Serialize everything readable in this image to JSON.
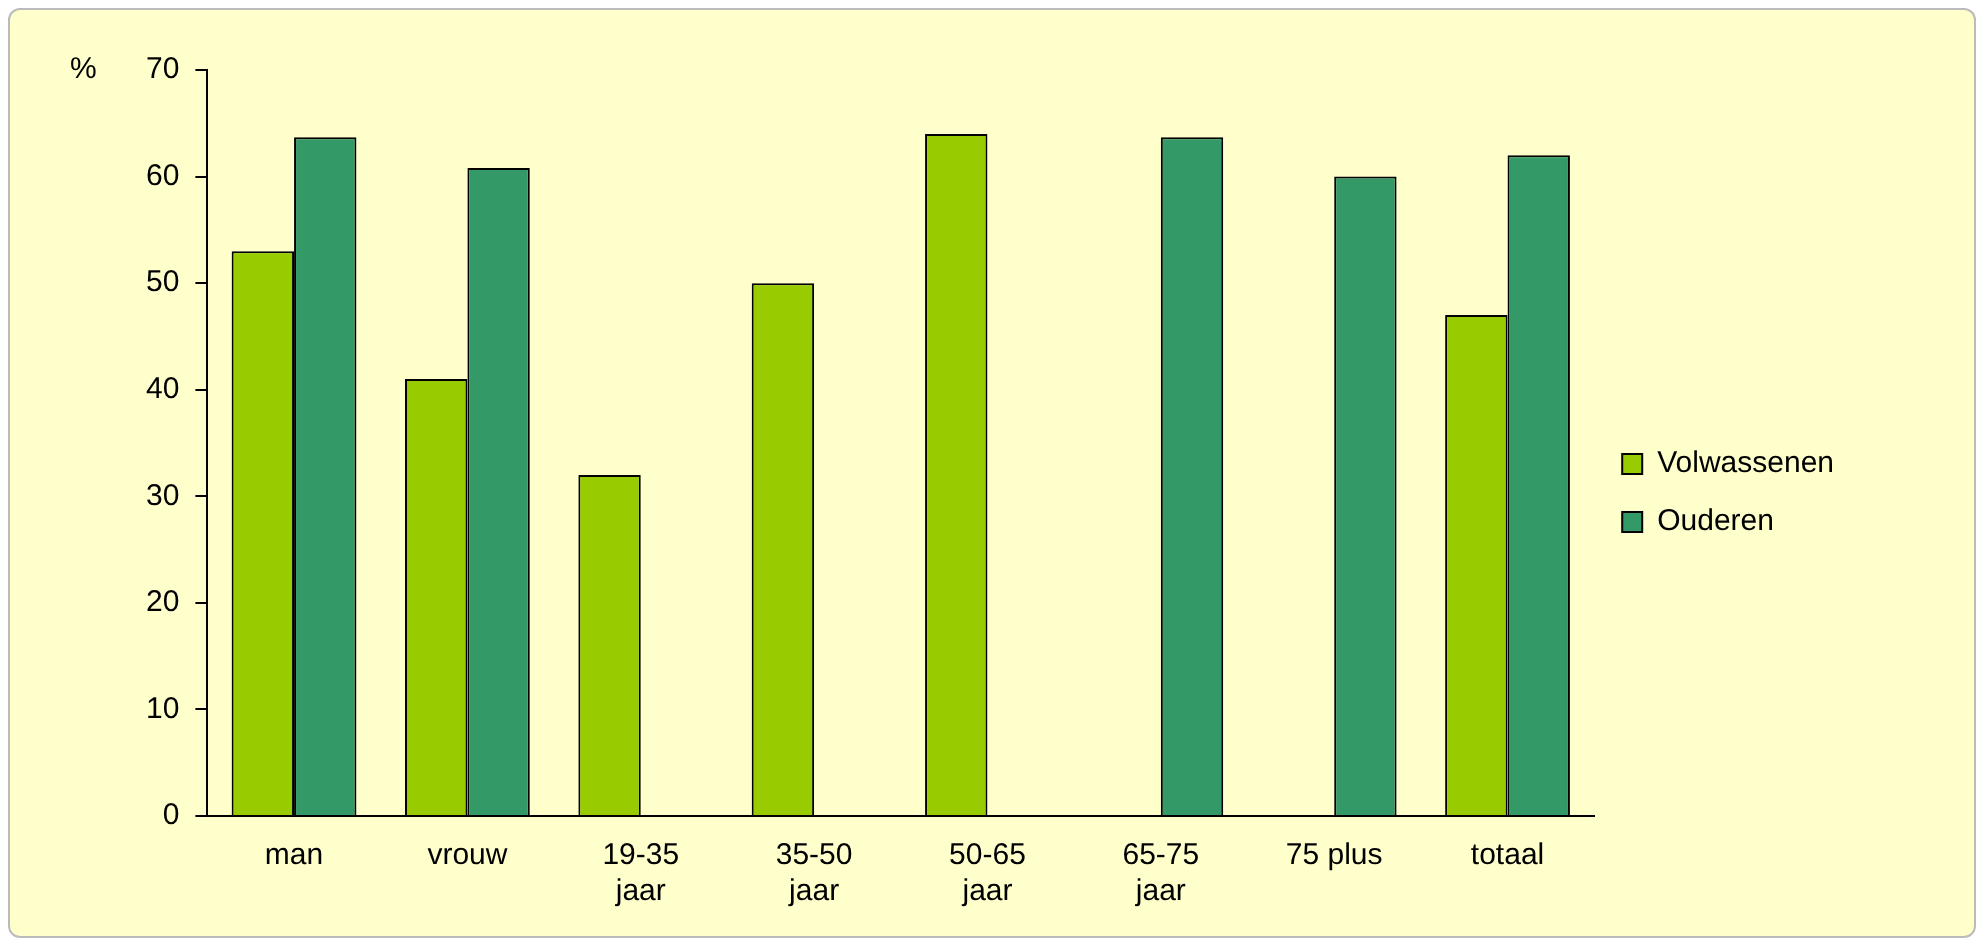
{
  "chart_data": {
    "type": "bar",
    "ylabel": "%",
    "categories": [
      "man",
      "vrouw",
      "19-35 jaar",
      "35-50 jaar",
      "50-65 jaar",
      "65-75 jaar",
      "75 plus",
      "totaal"
    ],
    "series": [
      {
        "name": "Volwassenen",
        "color": "#99cc00",
        "values": [
          53,
          41,
          32,
          50,
          64,
          null,
          null,
          47
        ]
      },
      {
        "name": "Ouderen",
        "color": "#339966",
        "values": [
          63.7,
          60.8,
          null,
          null,
          null,
          63.7,
          60,
          62
        ]
      }
    ],
    "ylim": [
      0,
      70
    ],
    "yticks": [
      0,
      10,
      20,
      30,
      40,
      50,
      60,
      70
    ],
    "grid": false,
    "legend": "right"
  }
}
